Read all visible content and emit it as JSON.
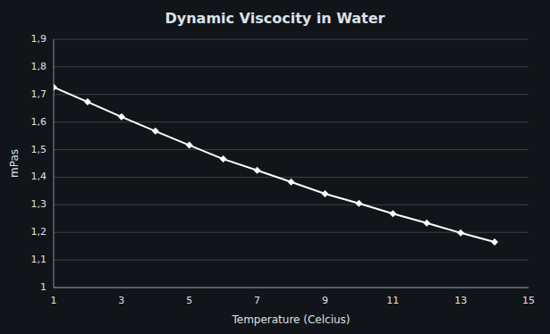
{
  "chart_data": {
    "type": "line",
    "title": "Dynamic Viscocity in Water",
    "xlabel": "Temperature (Celcius)",
    "ylabel": "mPas",
    "x": [
      1,
      2,
      3,
      4,
      5,
      6,
      7,
      8,
      9,
      10,
      11,
      12,
      13,
      14
    ],
    "values": [
      1.726,
      1.673,
      1.619,
      1.567,
      1.516,
      1.466,
      1.425,
      1.383,
      1.34,
      1.305,
      1.268,
      1.234,
      1.198,
      1.165
    ],
    "xlim": [
      1,
      15
    ],
    "ylim": [
      1.0,
      1.9
    ],
    "xticks": [
      1,
      3,
      5,
      7,
      9,
      11,
      13,
      15
    ],
    "yticks": [
      1,
      {
        "value": 1.1,
        "label": "1,1"
      },
      {
        "value": 1.2,
        "label": "1,2"
      },
      {
        "value": 1.3,
        "label": "1,3"
      },
      {
        "value": 1.4,
        "label": "1,4"
      },
      {
        "value": 1.5,
        "label": "1,5"
      },
      {
        "value": 1.6,
        "label": "1,6"
      },
      {
        "value": 1.7,
        "label": "1,7"
      },
      {
        "value": 1.8,
        "label": "1,8"
      },
      {
        "value": 1.9,
        "label": "1,9"
      }
    ],
    "color": "#ffffff",
    "marker": "diamond",
    "grid": "y"
  }
}
